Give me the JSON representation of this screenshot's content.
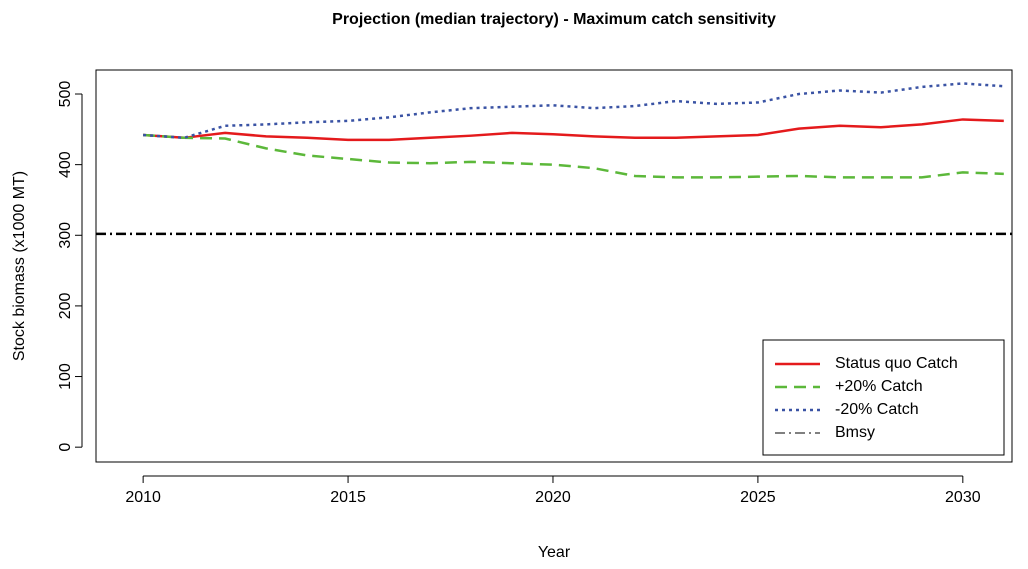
{
  "chart_data": {
    "type": "line",
    "title": "Projection (median trajectory) - Maximum catch sensitivity",
    "x_label": "Year",
    "y_label": "Stock biomass (x1000 MT)",
    "x": [
      2010,
      2011,
      2012,
      2013,
      2014,
      2015,
      2016,
      2017,
      2018,
      2019,
      2020,
      2021,
      2022,
      2023,
      2024,
      2025,
      2026,
      2027,
      2028,
      2029,
      2030,
      2031
    ],
    "series": [
      {
        "name": "Status quo Catch",
        "color": "#e41a1c",
        "dash": "solid",
        "values": [
          442,
          438,
          445,
          440,
          438,
          435,
          435,
          438,
          441,
          445,
          443,
          440,
          438,
          438,
          440,
          442,
          451,
          455,
          453,
          457,
          464,
          462
        ]
      },
      {
        "name": "+20% Catch",
        "color": "#5cb83a",
        "dash": "dashed",
        "values": [
          442,
          438,
          437,
          423,
          413,
          408,
          403,
          402,
          404,
          402,
          400,
          395,
          384,
          382,
          382,
          383,
          384,
          382,
          382,
          382,
          389,
          387
        ]
      },
      {
        "name": "-20% Catch",
        "color": "#3a53a4",
        "dash": "dotted",
        "values": [
          442,
          438,
          455,
          457,
          460,
          462,
          467,
          474,
          480,
          482,
          484,
          480,
          483,
          490,
          486,
          488,
          500,
          505,
          502,
          510,
          515,
          511
        ]
      }
    ],
    "hlines": [
      {
        "name": "Bmsy",
        "value": 302,
        "color": "#000000",
        "dash": "dotdash"
      }
    ],
    "xlim": [
      2008.85,
      2031.2
    ],
    "ylim": [
      -21,
      534
    ],
    "xticks": [
      2010,
      2015,
      2020,
      2025,
      2030
    ],
    "yticks": [
      0,
      100,
      200,
      300,
      400,
      500
    ],
    "legend": "bottom-right"
  }
}
